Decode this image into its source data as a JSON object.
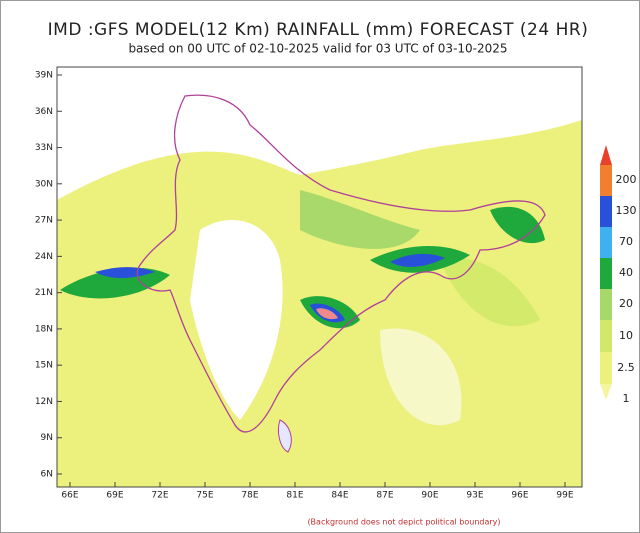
{
  "header": {
    "title": "IMD :GFS MODEL(12 Km) RAINFALL (mm) FORECAST (24 HR)",
    "subtitle": "based on 00 UTC of 02-10-2025 valid for 03 UTC of 03-10-2025"
  },
  "map": {
    "lat_labels": [
      "6N",
      "9N",
      "12N",
      "15N",
      "18N",
      "21N",
      "24N",
      "27N",
      "30N",
      "33N",
      "36N",
      "39N"
    ],
    "lon_labels": [
      "66E",
      "69E",
      "72E",
      "75E",
      "78E",
      "81E",
      "84E",
      "87E",
      "90E",
      "93E",
      "96E",
      "99E"
    ]
  },
  "legend": {
    "levels": [
      "1",
      "2.5",
      "10",
      "20",
      "40",
      "70",
      "130",
      "200"
    ]
  },
  "footer": {
    "note": "(Background does not depict political boundary)"
  }
}
